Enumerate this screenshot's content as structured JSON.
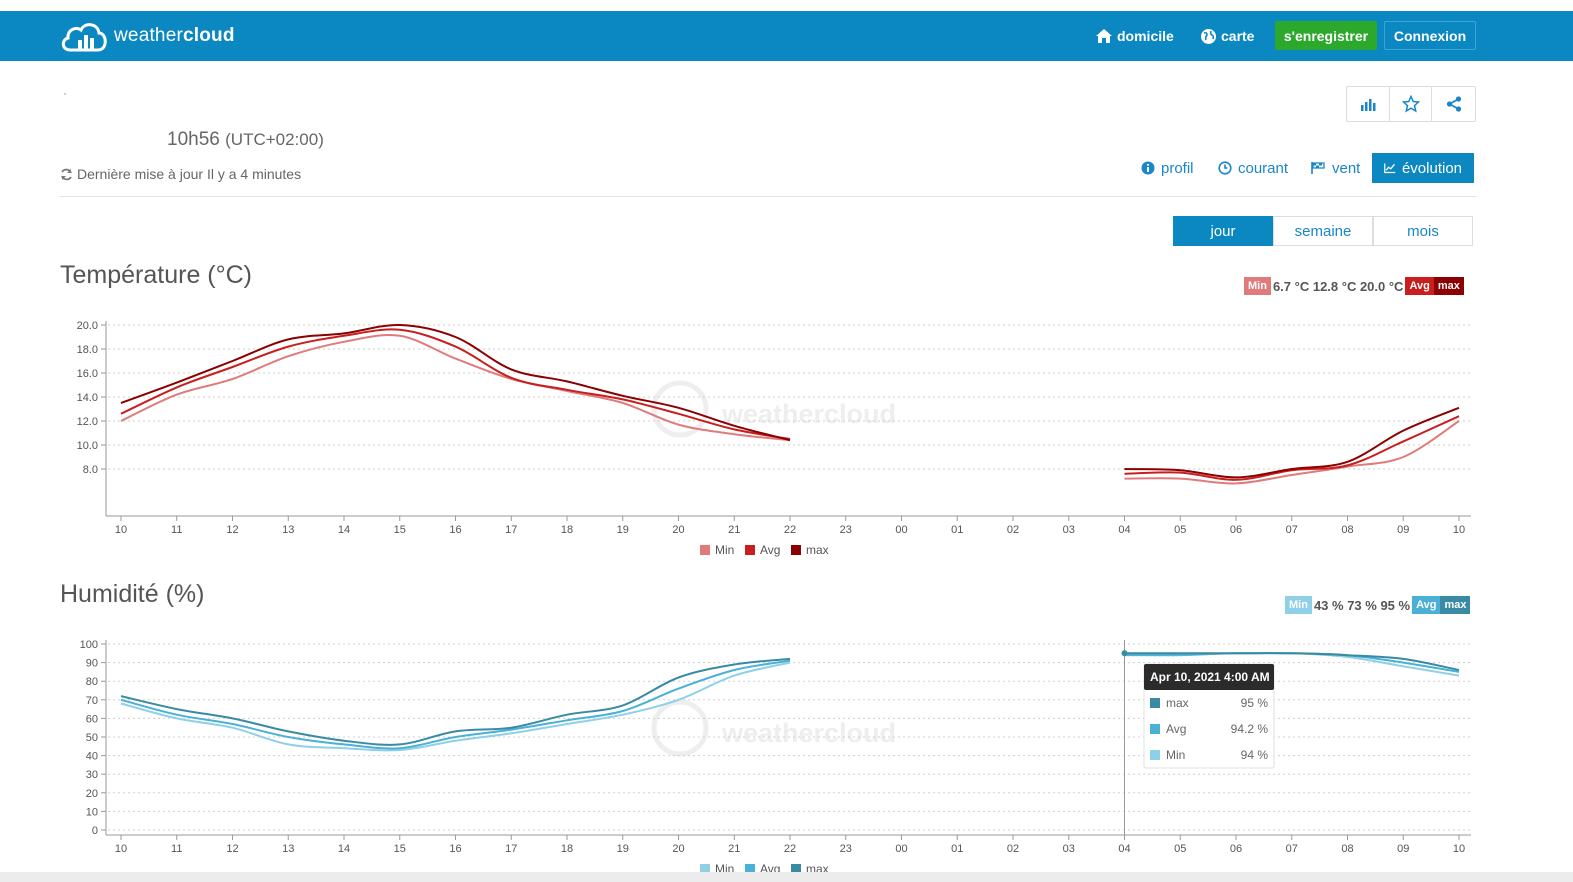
{
  "nav": {
    "logo_light": "weather",
    "logo_bold": "cloud",
    "home_label": "domicile",
    "map_label": "carte",
    "register_label": "s'enregistrer",
    "login_label": "Connexion"
  },
  "station": {
    "dot": "·",
    "time": "10h56",
    "timezone": "(UTC+02:00)",
    "updated": "Dernière mise à jour Il y a 4 minutes"
  },
  "view_tabs": [
    {
      "label": "profil",
      "icon": "info-icon"
    },
    {
      "label": "courant",
      "icon": "clock-icon"
    },
    {
      "label": "vent",
      "icon": "flag-icon"
    },
    {
      "label": "évolution",
      "icon": "line-chart-icon",
      "active": true
    }
  ],
  "periods": [
    {
      "label": "jour",
      "active": true
    },
    {
      "label": "semaine"
    },
    {
      "label": "mois"
    }
  ],
  "colors": {
    "navbar": "#0b88c2",
    "register": "#2ca82c",
    "temp_min": "#e07b7b",
    "temp_avg": "#c81e1e",
    "temp_max": "#8b0000",
    "hum_min": "#8fd0e8",
    "hum_avg": "#4ab0d6",
    "hum_max": "#3a8aa3"
  },
  "watermark": "weathercloud",
  "chart_data": [
    {
      "type": "line",
      "title": "Température (°C)",
      "summary": {
        "min_label": "Min",
        "values": "6.7 °C 12.8 °C 20.0 °C",
        "avg_label": "Avg",
        "max_label": "max"
      },
      "x_ticks": [
        "10",
        "11",
        "12",
        "13",
        "14",
        "15",
        "16",
        "17",
        "18",
        "19",
        "20",
        "21",
        "22",
        "23",
        "00",
        "01",
        "02",
        "03",
        "04",
        "05",
        "06",
        "07",
        "08",
        "09",
        "10"
      ],
      "y_ticks": [
        "20.0",
        "18.0",
        "16.0",
        "14.0",
        "12.0",
        "10.0",
        "8.0"
      ],
      "ylim": [
        6.7,
        20.0
      ],
      "grid": true,
      "legend_position": "bottom",
      "series": [
        {
          "name": "Min",
          "segments": [
            [
              [
                0,
                12.0
              ],
              [
                1,
                14.2
              ],
              [
                2,
                15.5
              ],
              [
                3,
                17.4
              ],
              [
                4,
                18.6
              ],
              [
                5,
                19.1
              ],
              [
                6,
                17.2
              ],
              [
                7,
                15.5
              ],
              [
                8,
                14.5
              ],
              [
                9,
                13.5
              ],
              [
                10,
                11.7
              ],
              [
                11,
                10.9
              ],
              [
                12,
                10.4
              ]
            ],
            [
              [
                18,
                7.2
              ],
              [
                19,
                7.2
              ],
              [
                20,
                6.8
              ],
              [
                21,
                7.5
              ],
              [
                22,
                8.2
              ],
              [
                23,
                9.0
              ],
              [
                24,
                12.0
              ]
            ]
          ]
        },
        {
          "name": "Avg",
          "segments": [
            [
              [
                0,
                12.6
              ],
              [
                1,
                14.8
              ],
              [
                2,
                16.5
              ],
              [
                3,
                18.2
              ],
              [
                4,
                19.1
              ],
              [
                5,
                19.6
              ],
              [
                6,
                18.2
              ],
              [
                7,
                15.6
              ],
              [
                8,
                14.6
              ],
              [
                9,
                13.8
              ],
              [
                10,
                12.6
              ],
              [
                11,
                11.3
              ],
              [
                12,
                10.5
              ]
            ],
            [
              [
                18,
                7.6
              ],
              [
                19,
                7.7
              ],
              [
                20,
                7.1
              ],
              [
                21,
                7.9
              ],
              [
                22,
                8.3
              ],
              [
                23,
                10.3
              ],
              [
                24,
                12.4
              ]
            ]
          ]
        },
        {
          "name": "max",
          "segments": [
            [
              [
                0,
                13.5
              ],
              [
                1,
                15.2
              ],
              [
                2,
                17.0
              ],
              [
                3,
                18.8
              ],
              [
                4,
                19.3
              ],
              [
                5,
                20.0
              ],
              [
                6,
                19.0
              ],
              [
                7,
                16.3
              ],
              [
                8,
                15.3
              ],
              [
                9,
                14.1
              ],
              [
                10,
                13.1
              ],
              [
                11,
                11.6
              ],
              [
                12,
                10.4
              ]
            ],
            [
              [
                18,
                8.0
              ],
              [
                19,
                7.9
              ],
              [
                20,
                7.3
              ],
              [
                21,
                8.0
              ],
              [
                22,
                8.6
              ],
              [
                23,
                11.2
              ],
              [
                24,
                13.1
              ]
            ]
          ]
        }
      ]
    },
    {
      "type": "line",
      "title": "Humidité (%)",
      "summary": {
        "min_label": "Min",
        "values": "43 % 73 % 95 %",
        "avg_label": "Avg",
        "max_label": "max"
      },
      "x_ticks": [
        "10",
        "11",
        "12",
        "13",
        "14",
        "15",
        "16",
        "17",
        "18",
        "19",
        "20",
        "21",
        "22",
        "23",
        "00",
        "01",
        "02",
        "03",
        "04",
        "05",
        "06",
        "07",
        "08",
        "09",
        "10"
      ],
      "y_ticks": [
        "100",
        "90",
        "80",
        "70",
        "60",
        "50",
        "40",
        "30",
        "20",
        "10",
        "0"
      ],
      "ylim": [
        0,
        100
      ],
      "grid": true,
      "legend_position": "bottom",
      "tooltip": {
        "title": "Apr 10, 2021 4:00 AM",
        "rows": [
          {
            "name": "max",
            "value": "95 %"
          },
          {
            "name": "Avg",
            "value": "94.2 %"
          },
          {
            "name": "Min",
            "value": "94 %"
          }
        ]
      },
      "series": [
        {
          "name": "Min",
          "segments": [
            [
              [
                0,
                68
              ],
              [
                1,
                60
              ],
              [
                2,
                55
              ],
              [
                3,
                46
              ],
              [
                4,
                44
              ],
              [
                5,
                43
              ],
              [
                6,
                48
              ],
              [
                7,
                52
              ],
              [
                8,
                57
              ],
              [
                9,
                62
              ],
              [
                10,
                70
              ],
              [
                11,
                83
              ],
              [
                12,
                90
              ]
            ],
            [
              [
                18,
                94
              ],
              [
                19,
                94
              ],
              [
                20,
                95
              ],
              [
                21,
                95
              ],
              [
                22,
                93
              ],
              [
                23,
                88
              ],
              [
                24,
                83
              ]
            ]
          ]
        },
        {
          "name": "Avg",
          "segments": [
            [
              [
                0,
                70
              ],
              [
                1,
                62
              ],
              [
                2,
                57
              ],
              [
                3,
                50
              ],
              [
                4,
                46
              ],
              [
                5,
                44
              ],
              [
                6,
                50
              ],
              [
                7,
                54
              ],
              [
                8,
                59
              ],
              [
                9,
                64
              ],
              [
                10,
                76
              ],
              [
                11,
                86
              ],
              [
                12,
                91
              ]
            ],
            [
              [
                18,
                94.2
              ],
              [
                19,
                94.2
              ],
              [
                20,
                95
              ],
              [
                21,
                95
              ],
              [
                22,
                94
              ],
              [
                23,
                90
              ],
              [
                24,
                85
              ]
            ]
          ]
        },
        {
          "name": "max",
          "segments": [
            [
              [
                0,
                72
              ],
              [
                1,
                65
              ],
              [
                2,
                60
              ],
              [
                3,
                53
              ],
              [
                4,
                48
              ],
              [
                5,
                46
              ],
              [
                6,
                53
              ],
              [
                7,
                55
              ],
              [
                8,
                62
              ],
              [
                9,
                67
              ],
              [
                10,
                82
              ],
              [
                11,
                89
              ],
              [
                12,
                92
              ]
            ],
            [
              [
                18,
                95
              ],
              [
                19,
                95
              ],
              [
                20,
                95
              ],
              [
                21,
                95
              ],
              [
                22,
                94
              ],
              [
                23,
                92
              ],
              [
                24,
                86
              ]
            ]
          ]
        }
      ]
    }
  ]
}
